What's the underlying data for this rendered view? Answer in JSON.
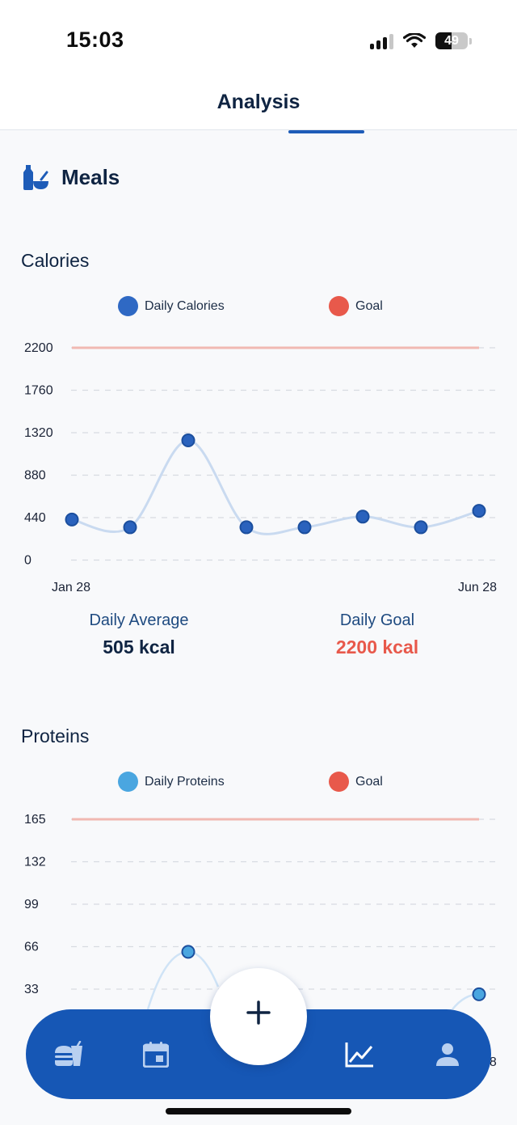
{
  "status_bar": {
    "time": "15:03",
    "battery": "49"
  },
  "header": {
    "title": "Analysis"
  },
  "section": {
    "title": "Meals",
    "icon": "meals-icon"
  },
  "calories": {
    "title": "Calories",
    "legend": [
      {
        "label": "Daily Calories",
        "color": "#2f69c4"
      },
      {
        "label": "Goal",
        "color": "#e8594b"
      }
    ],
    "y_ticks": [
      "2200",
      "1760",
      "1320",
      "880",
      "440",
      "0"
    ],
    "x_labels": {
      "start": "Jan 28",
      "end": "Jun 28"
    },
    "stats": {
      "avg_label": "Daily Average",
      "avg_value": "505 kcal",
      "goal_label": "Daily Goal",
      "goal_value": "2200 kcal"
    }
  },
  "proteins": {
    "title": "Proteins",
    "legend": [
      {
        "label": "Daily Proteins",
        "color": "#4aa6e0"
      },
      {
        "label": "Goal",
        "color": "#e8594b"
      }
    ],
    "y_ticks": [
      "165",
      "132",
      "99",
      "66",
      "33"
    ],
    "x_labels": {
      "end": "28"
    }
  },
  "chart_data": [
    {
      "type": "line",
      "title": "Calories",
      "categories": [
        "Jan 28",
        "",
        "",
        "",
        "",
        "",
        "",
        "Jun 28"
      ],
      "series": [
        {
          "name": "Daily Calories",
          "values": [
            420,
            340,
            1240,
            340,
            340,
            450,
            340,
            510
          ]
        },
        {
          "name": "Goal",
          "values": [
            2200,
            2200,
            2200,
            2200,
            2200,
            2200,
            2200,
            2200
          ]
        }
      ],
      "ylim": [
        0,
        2200
      ],
      "grid": true,
      "legend": "top"
    },
    {
      "type": "line",
      "title": "Proteins",
      "series": [
        {
          "name": "Daily Proteins",
          "values": [
            null,
            null,
            62,
            null,
            null,
            null,
            null,
            29
          ]
        },
        {
          "name": "Goal",
          "values": [
            165,
            165,
            165,
            165,
            165,
            165,
            165,
            165
          ]
        }
      ],
      "ylim": [
        0,
        165
      ],
      "grid": true,
      "legend": "top"
    }
  ],
  "nav": {
    "items": [
      {
        "name": "meals-tab",
        "icon": "food-icon"
      },
      {
        "name": "calendar-tab",
        "icon": "calendar-icon"
      },
      {
        "name": "analysis-tab",
        "icon": "chart-icon"
      },
      {
        "name": "profile-tab",
        "icon": "person-icon"
      }
    ],
    "fab": "+"
  }
}
